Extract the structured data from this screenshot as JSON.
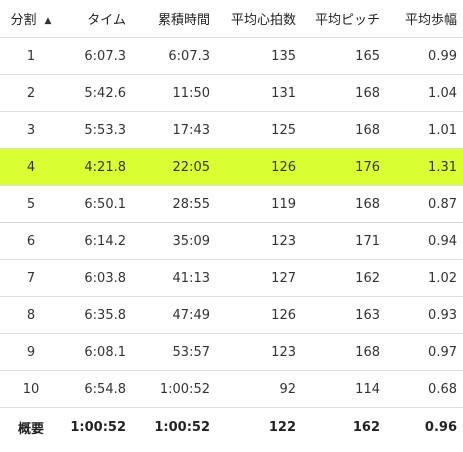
{
  "table": {
    "headers": {
      "split": "分割",
      "time": "タイム",
      "cumulative_time": "累積時間",
      "avg_hr": "平均心拍数",
      "avg_cadence": "平均ピッチ",
      "avg_stride": "平均歩幅"
    },
    "sort_indicator": "▲",
    "rows": [
      {
        "split": "1",
        "time": "6:07.3",
        "cumulative_time": "6:07.3",
        "avg_hr": "135",
        "avg_cadence": "165",
        "avg_stride": "0.99"
      },
      {
        "split": "2",
        "time": "5:42.6",
        "cumulative_time": "11:50",
        "avg_hr": "131",
        "avg_cadence": "168",
        "avg_stride": "1.04"
      },
      {
        "split": "3",
        "time": "5:53.3",
        "cumulative_time": "17:43",
        "avg_hr": "125",
        "avg_cadence": "168",
        "avg_stride": "1.01"
      },
      {
        "split": "4",
        "time": "4:21.8",
        "cumulative_time": "22:05",
        "avg_hr": "126",
        "avg_cadence": "176",
        "avg_stride": "1.31"
      },
      {
        "split": "5",
        "time": "6:50.1",
        "cumulative_time": "28:55",
        "avg_hr": "119",
        "avg_cadence": "168",
        "avg_stride": "0.87"
      },
      {
        "split": "6",
        "time": "6:14.2",
        "cumulative_time": "35:09",
        "avg_hr": "123",
        "avg_cadence": "171",
        "avg_stride": "0.94"
      },
      {
        "split": "7",
        "time": "6:03.8",
        "cumulative_time": "41:13",
        "avg_hr": "127",
        "avg_cadence": "162",
        "avg_stride": "1.02"
      },
      {
        "split": "8",
        "time": "6:35.8",
        "cumulative_time": "47:49",
        "avg_hr": "126",
        "avg_cadence": "163",
        "avg_stride": "0.93"
      },
      {
        "split": "9",
        "time": "6:08.1",
        "cumulative_time": "53:57",
        "avg_hr": "123",
        "avg_cadence": "168",
        "avg_stride": "0.97"
      },
      {
        "split": "10",
        "time": "6:54.8",
        "cumulative_time": "1:00:52",
        "avg_hr": "92",
        "avg_cadence": "114",
        "avg_stride": "0.68"
      }
    ],
    "highlighted_row": "4",
    "highlight_color": "#d9ff33",
    "summary": {
      "split": "概要",
      "time": "1:00:52",
      "cumulative_time": "1:00:52",
      "avg_hr": "122",
      "avg_cadence": "162",
      "avg_stride": "0.96"
    }
  }
}
